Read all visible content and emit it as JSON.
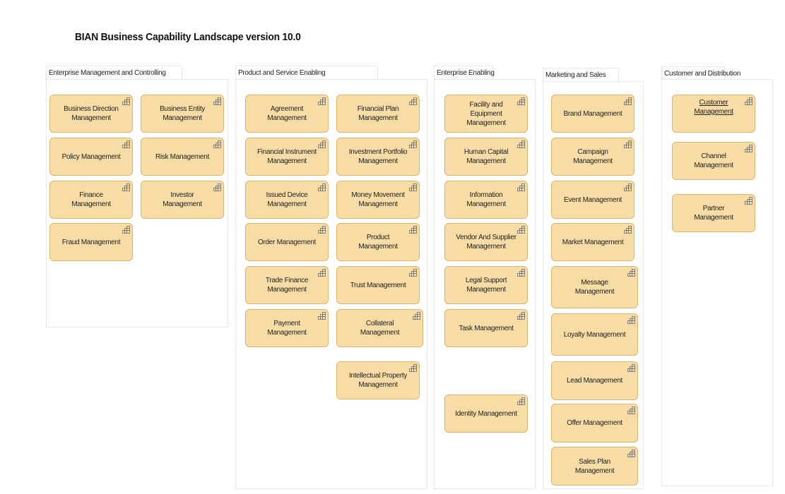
{
  "title": "BIAN Business Capability Landscape version 10.0",
  "colors": {
    "capability_fill": "#f7dca6",
    "capability_border": "#dcb46c"
  },
  "capability_icon": "capability-icon",
  "groups": [
    {
      "label": "Enterprise Management and Controlling",
      "items": [
        "Business Direction Management",
        "Business Entity Management",
        "Policy Management",
        "Risk Management",
        "Finance Management",
        "Investor Management",
        "Fraud Management"
      ]
    },
    {
      "label": "Product and Service Enabling",
      "items": [
        "Agreement Management",
        "Financial Plan Management",
        "Financial Instrument Management",
        "Investment Portfolio Management",
        "Issued Device Management",
        "Money Movement Management",
        "Order Management",
        "Product Management",
        "Trade Finance Management",
        "Trust Management",
        "Payment Management",
        "Collateral Management",
        "Intellectual Property Management"
      ]
    },
    {
      "label": "Enterprise Enabling",
      "items": [
        "Facility and Equipment Management",
        "Human Capital Management",
        "Information Management",
        "Vendor And Supplier Management",
        "Legal Support Management",
        "Task Management",
        "Identity Management"
      ]
    },
    {
      "label": "Marketing and Sales",
      "items": [
        "Brand Management",
        "Campaign Management",
        "Event Management",
        "Market Management",
        "Message Management",
        "Loyalty Management",
        "Lead Management",
        "Offer Management",
        "Sales Plan Management"
      ]
    },
    {
      "label": "Customer and Distribution",
      "items": [
        "Customer Management",
        "Channel Management",
        "Partner Management"
      ]
    }
  ]
}
